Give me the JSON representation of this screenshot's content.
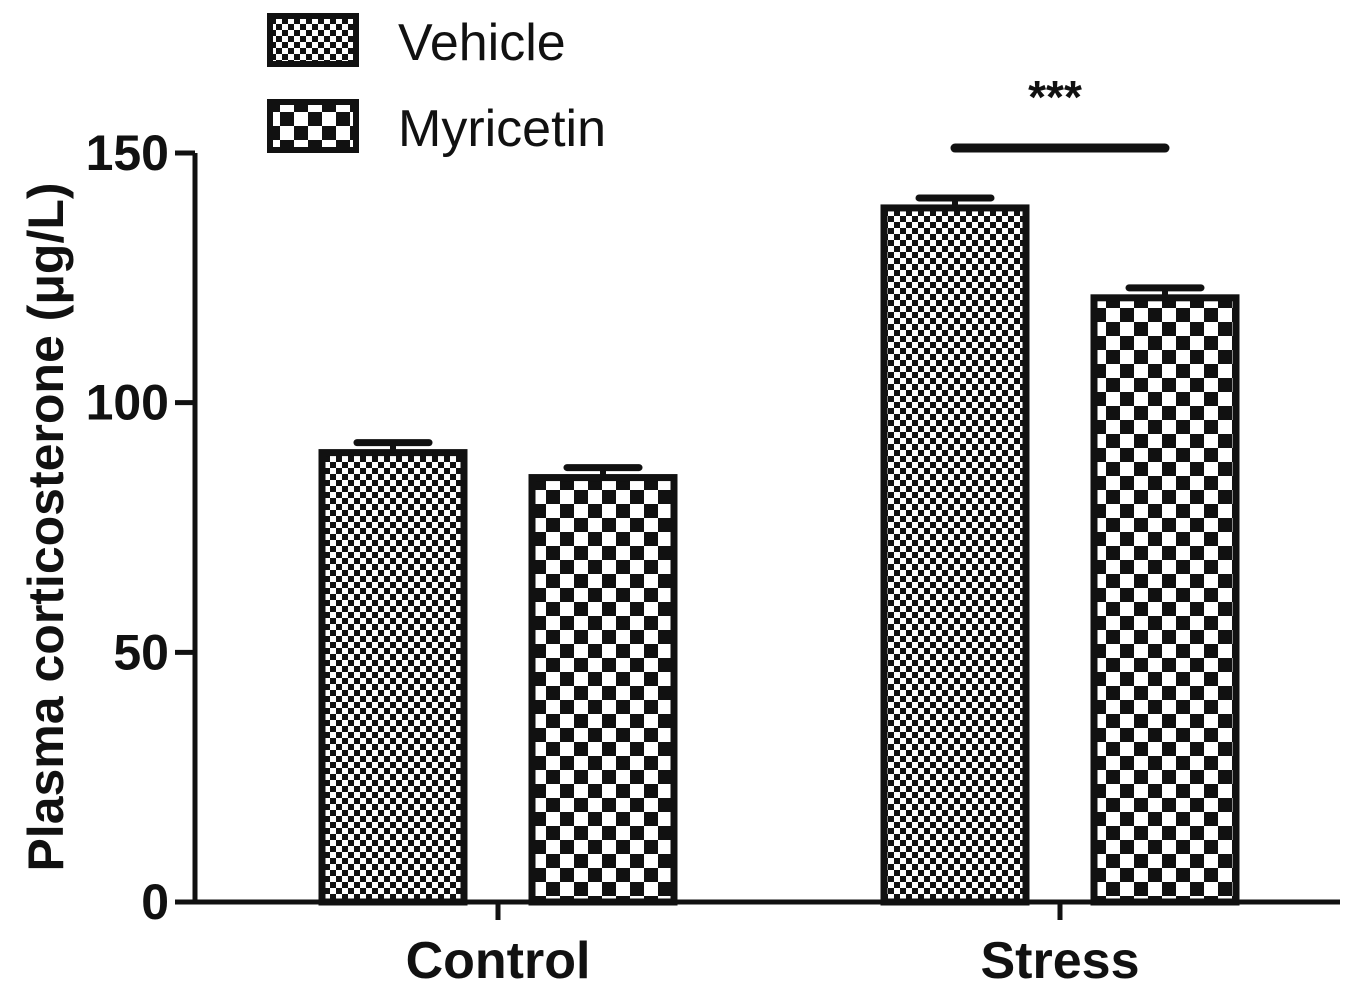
{
  "chart_data": {
    "type": "bar",
    "categories": [
      "Control",
      "Stress"
    ],
    "series": [
      {
        "name": "Vehicle",
        "values": [
          90,
          139
        ],
        "error": [
          2,
          2
        ],
        "pattern": "fine-checker"
      },
      {
        "name": "Myricetin",
        "values": [
          85,
          121
        ],
        "error": [
          2,
          2
        ],
        "pattern": "coarse-checker"
      }
    ],
    "xlabel": "",
    "ylabel": "Plasma corticosterone (μg/L)",
    "ylim": [
      0,
      150
    ],
    "yticks": [
      0,
      50,
      100,
      150
    ],
    "grid": false,
    "legend_position": "top-left",
    "annotations": [
      {
        "text": "***",
        "category": "Stress",
        "between_series": [
          0,
          1
        ],
        "bracket_value": 151
      }
    ],
    "colors": {
      "bar_edge": "#111111",
      "pattern_dark": "#111111",
      "pattern_light": "#ffffff"
    }
  }
}
